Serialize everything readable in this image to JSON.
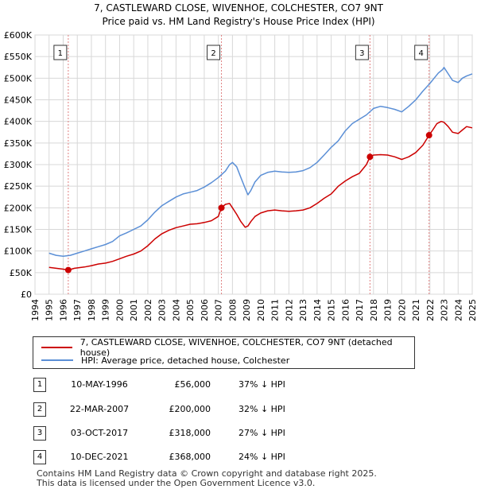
{
  "title_line1": "7, CASTLEWARD CLOSE, WIVENHOE, COLCHESTER, CO7 9NT",
  "title_line2": "Price paid vs. HM Land Registry's House Price Index (HPI)",
  "colors": {
    "property": "#cc0000",
    "hpi": "#5b8fd6",
    "marker_line": "#e08080"
  },
  "chart_data": {
    "type": "line",
    "xlim": [
      1994,
      2025
    ],
    "ylim": [
      0,
      600000
    ],
    "x_ticks": [
      "1994",
      "1995",
      "1996",
      "1997",
      "1998",
      "1999",
      "2000",
      "2001",
      "2002",
      "2003",
      "2004",
      "2005",
      "2006",
      "2007",
      "2008",
      "2009",
      "2010",
      "2011",
      "2012",
      "2013",
      "2014",
      "2015",
      "2016",
      "2017",
      "2018",
      "2019",
      "2020",
      "2021",
      "2022",
      "2023",
      "2024",
      "2025"
    ],
    "y_ticks": [
      {
        "value": 0,
        "label": "£0"
      },
      {
        "value": 50000,
        "label": "£50K"
      },
      {
        "value": 100000,
        "label": "£100K"
      },
      {
        "value": 150000,
        "label": "£150K"
      },
      {
        "value": 200000,
        "label": "£200K"
      },
      {
        "value": 250000,
        "label": "£250K"
      },
      {
        "value": 300000,
        "label": "£300K"
      },
      {
        "value": 350000,
        "label": "£350K"
      },
      {
        "value": 400000,
        "label": "£400K"
      },
      {
        "value": 450000,
        "label": "£450K"
      },
      {
        "value": 500000,
        "label": "£500K"
      },
      {
        "value": 550000,
        "label": "£550K"
      },
      {
        "value": 600000,
        "label": "£600K"
      }
    ],
    "series": [
      {
        "name": "7, CASTLEWARD CLOSE, WIVENHOE, COLCHESTER, CO7 9NT (detached house)",
        "key": "property",
        "x": [
          1995.0,
          1995.5,
          1996.0,
          1996.36,
          1996.8,
          1997.5,
          1998.0,
          1998.5,
          1999.0,
          1999.5,
          2000.0,
          2000.5,
          2001.0,
          2001.5,
          2002.0,
          2002.5,
          2003.0,
          2003.5,
          2004.0,
          2004.5,
          2005.0,
          2005.5,
          2006.0,
          2006.5,
          2007.0,
          2007.22,
          2007.5,
          2007.8,
          2008.0,
          2008.3,
          2008.6,
          2008.9,
          2009.1,
          2009.3,
          2009.6,
          2010.0,
          2010.5,
          2011.0,
          2011.5,
          2012.0,
          2012.5,
          2013.0,
          2013.5,
          2014.0,
          2014.5,
          2015.0,
          2015.5,
          2016.0,
          2016.5,
          2017.0,
          2017.5,
          2017.75,
          2018.0,
          2018.5,
          2019.0,
          2019.5,
          2020.0,
          2020.5,
          2021.0,
          2021.5,
          2021.94,
          2022.2,
          2022.5,
          2022.8,
          2023.0,
          2023.3,
          2023.6,
          2024.0,
          2024.3,
          2024.6,
          2025.0
        ],
        "y": [
          62000,
          60000,
          58000,
          56000,
          60000,
          63000,
          66000,
          70000,
          72000,
          76000,
          82000,
          88000,
          93000,
          100000,
          112000,
          128000,
          140000,
          148000,
          154000,
          158000,
          162000,
          163000,
          166000,
          170000,
          180000,
          200000,
          208000,
          210000,
          200000,
          185000,
          168000,
          155000,
          158000,
          168000,
          180000,
          188000,
          193000,
          195000,
          193000,
          192000,
          193000,
          195000,
          200000,
          210000,
          222000,
          232000,
          250000,
          262000,
          272000,
          280000,
          300000,
          318000,
          322000,
          323000,
          322000,
          318000,
          312000,
          318000,
          328000,
          345000,
          368000,
          380000,
          395000,
          400000,
          398000,
          388000,
          375000,
          372000,
          380000,
          388000,
          385000
        ]
      },
      {
        "name": "HPI: Average price, detached house, Colchester",
        "key": "hpi",
        "x": [
          1995.0,
          1995.5,
          1996.0,
          1996.5,
          1997.0,
          1997.5,
          1998.0,
          1998.5,
          1999.0,
          1999.5,
          2000.0,
          2000.5,
          2001.0,
          2001.5,
          2002.0,
          2002.5,
          2003.0,
          2003.5,
          2004.0,
          2004.5,
          2005.0,
          2005.5,
          2006.0,
          2006.5,
          2007.0,
          2007.5,
          2007.8,
          2008.0,
          2008.3,
          2008.6,
          2008.9,
          2009.1,
          2009.3,
          2009.6,
          2010.0,
          2010.5,
          2011.0,
          2011.5,
          2012.0,
          2012.5,
          2013.0,
          2013.5,
          2014.0,
          2014.5,
          2015.0,
          2015.5,
          2016.0,
          2016.5,
          2017.0,
          2017.5,
          2018.0,
          2018.5,
          2019.0,
          2019.5,
          2020.0,
          2020.5,
          2021.0,
          2021.5,
          2022.0,
          2022.3,
          2022.6,
          2022.9,
          2023.0,
          2023.3,
          2023.6,
          2024.0,
          2024.3,
          2024.6,
          2025.0
        ],
        "y": [
          95000,
          90000,
          88000,
          90000,
          95000,
          100000,
          105000,
          110000,
          115000,
          122000,
          135000,
          142000,
          150000,
          158000,
          172000,
          190000,
          205000,
          215000,
          225000,
          232000,
          236000,
          240000,
          248000,
          258000,
          270000,
          285000,
          300000,
          305000,
          295000,
          270000,
          245000,
          230000,
          240000,
          260000,
          275000,
          282000,
          285000,
          283000,
          282000,
          283000,
          286000,
          293000,
          305000,
          322000,
          340000,
          355000,
          378000,
          395000,
          405000,
          415000,
          430000,
          435000,
          432000,
          428000,
          422000,
          435000,
          450000,
          470000,
          488000,
          500000,
          512000,
          520000,
          525000,
          510000,
          495000,
          490000,
          500000,
          505000,
          510000
        ]
      }
    ],
    "transactions": [
      {
        "label": "1",
        "x": 1996.36,
        "y": 56000
      },
      {
        "label": "2",
        "x": 2007.22,
        "y": 200000
      },
      {
        "label": "3",
        "x": 2017.75,
        "y": 318000
      },
      {
        "label": "4",
        "x": 2021.94,
        "y": 368000
      }
    ]
  },
  "legend": {
    "property_label": "7, CASTLEWARD CLOSE, WIVENHOE, COLCHESTER, CO7 9NT (detached house)",
    "hpi_label": "HPI: Average price, detached house, Colchester"
  },
  "sales": [
    {
      "num": "1",
      "date": "10-MAY-1996",
      "price": "£56,000",
      "hpi": "37% ↓ HPI"
    },
    {
      "num": "2",
      "date": "22-MAR-2007",
      "price": "£200,000",
      "hpi": "32% ↓ HPI"
    },
    {
      "num": "3",
      "date": "03-OCT-2017",
      "price": "£318,000",
      "hpi": "27% ↓ HPI"
    },
    {
      "num": "4",
      "date": "10-DEC-2021",
      "price": "£368,000",
      "hpi": "24% ↓ HPI"
    }
  ],
  "footer": {
    "line1": "Contains HM Land Registry data © Crown copyright and database right 2025.",
    "line2": "This data is licensed under the Open Government Licence v3.0."
  }
}
